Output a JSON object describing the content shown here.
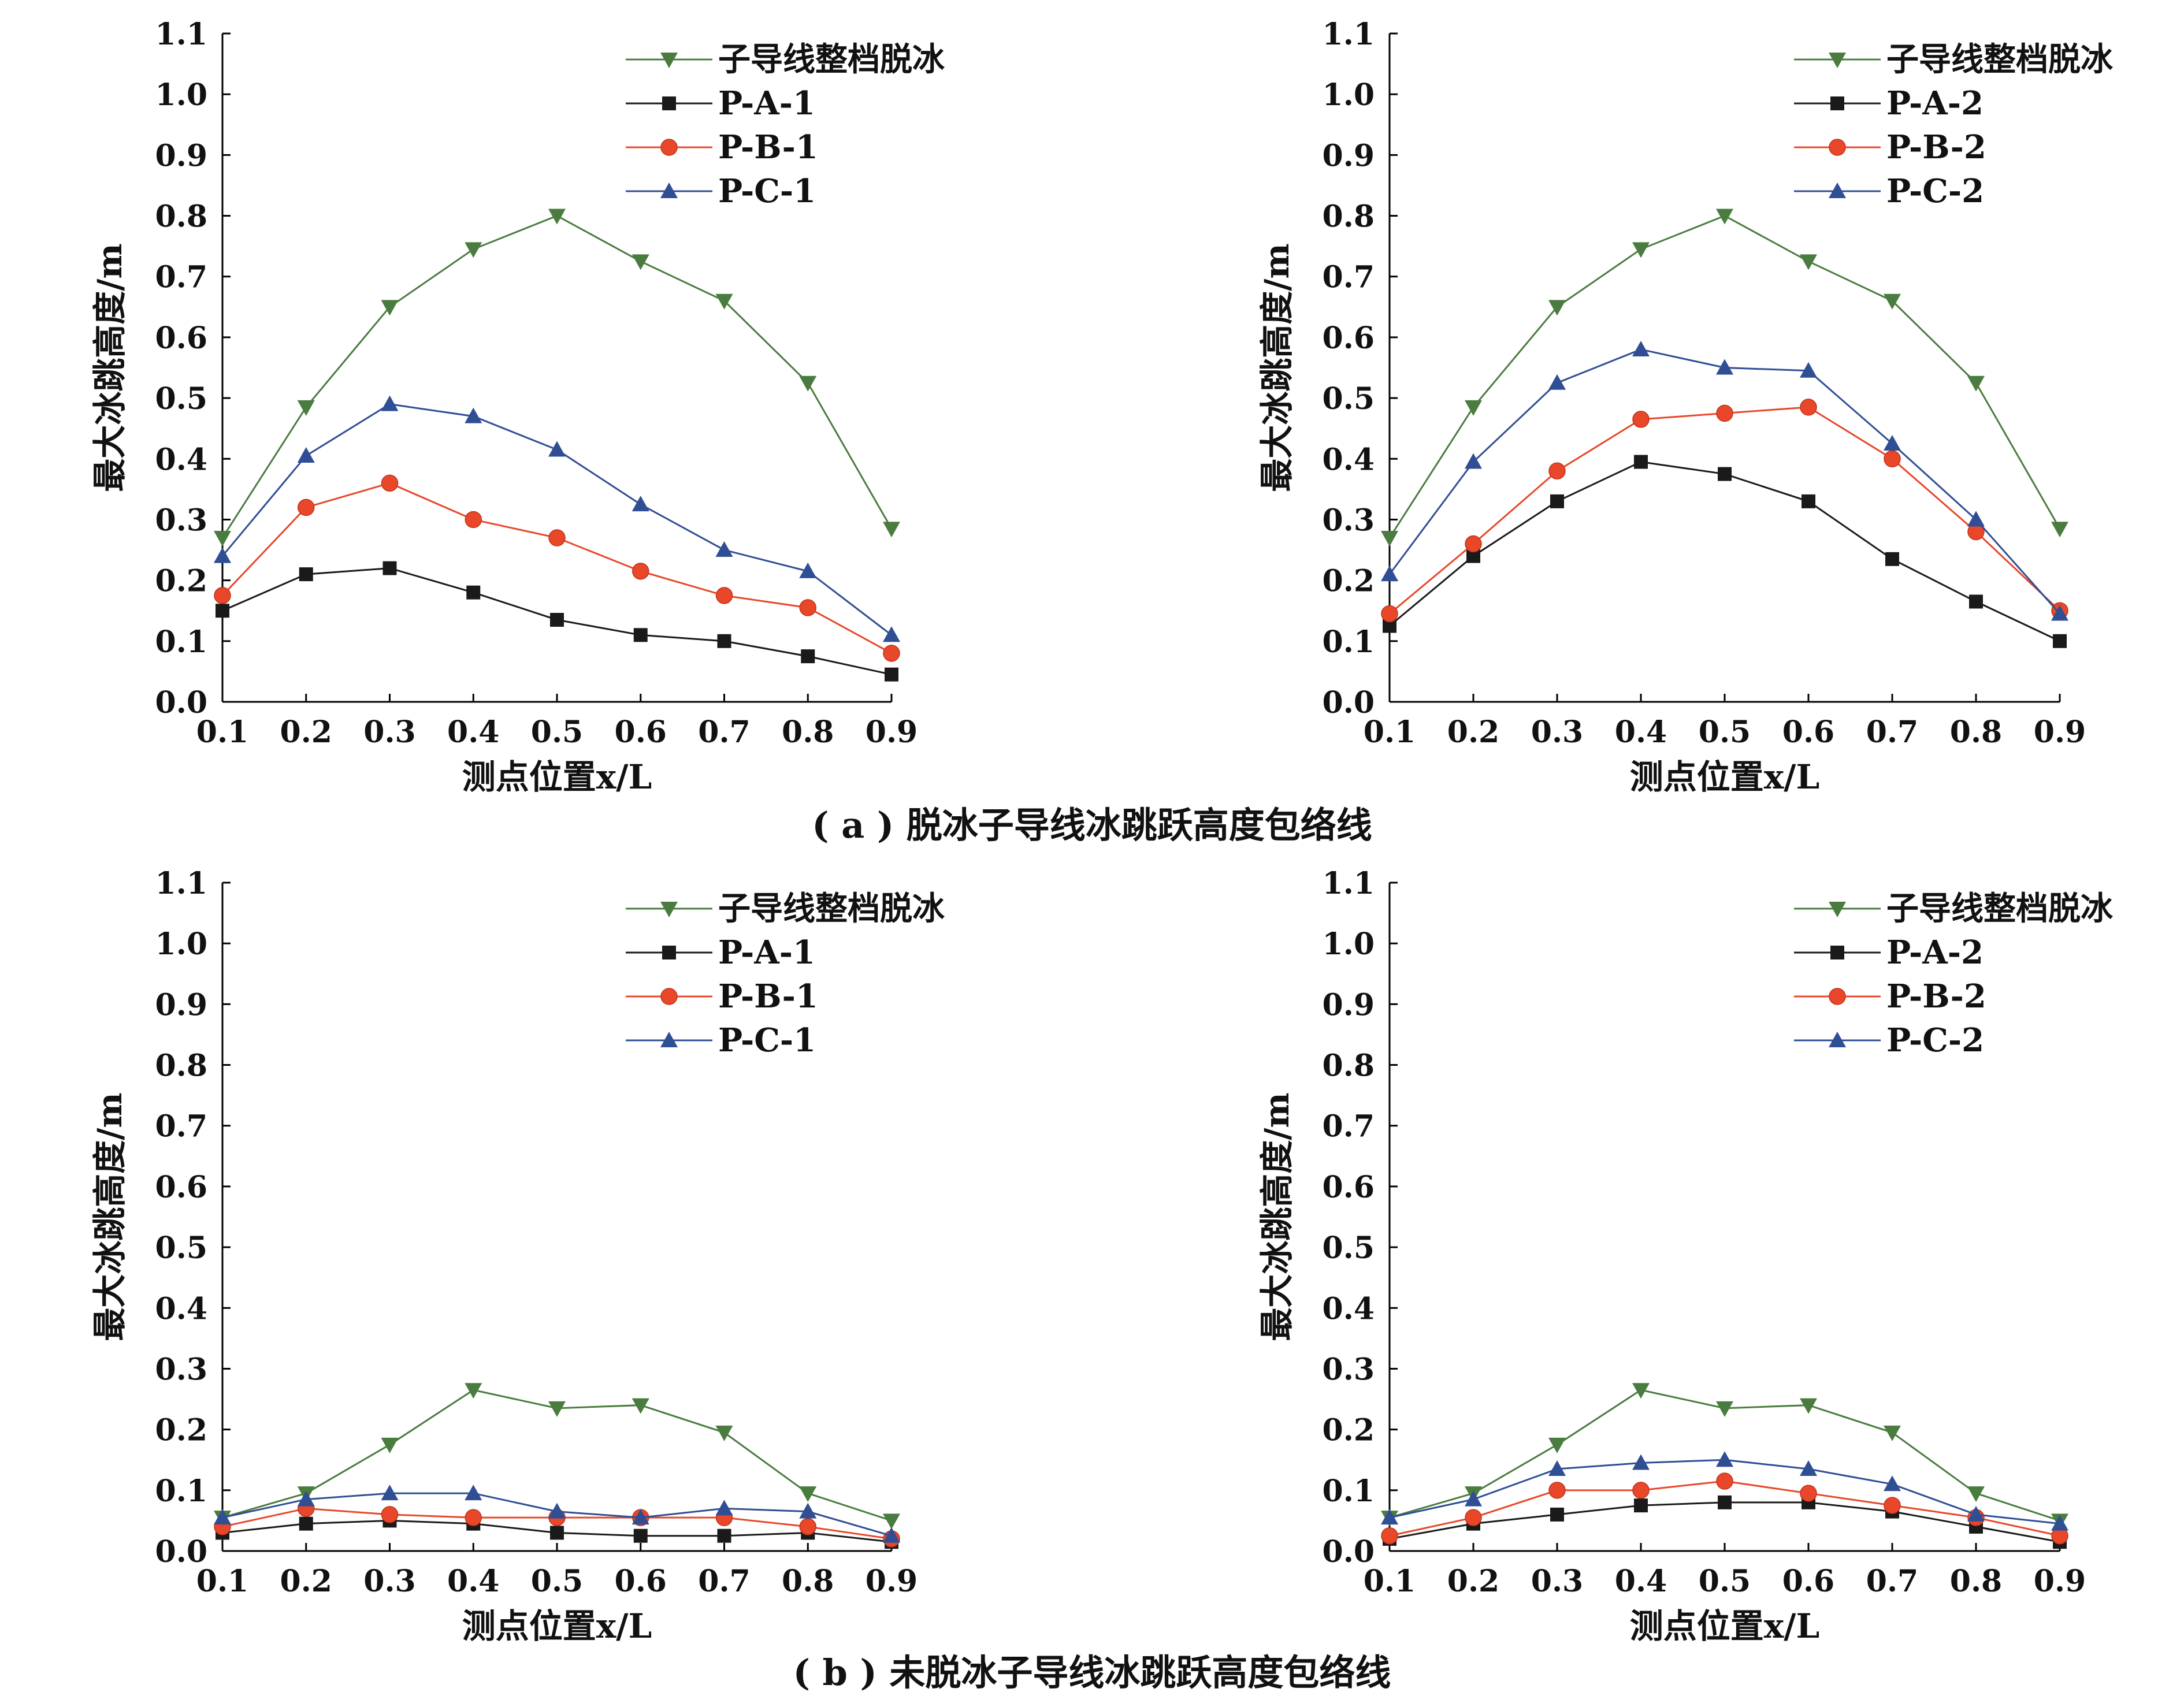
{
  "chart_data": [
    {
      "id": "a-left",
      "type": "line",
      "x": [
        0.1,
        0.2,
        0.3,
        0.4,
        0.5,
        0.6,
        0.7,
        0.8,
        0.9
      ],
      "xlabel": "测点位置x/L",
      "ylabel": "最大冰跳高度/m",
      "xlim": [
        0.1,
        0.9
      ],
      "ylim": [
        0.0,
        1.1
      ],
      "xticks": [
        "0.1",
        "0.2",
        "0.3",
        "0.4",
        "0.5",
        "0.6",
        "0.7",
        "0.8",
        "0.9"
      ],
      "yticks": [
        "0.0",
        "0.1",
        "0.2",
        "0.3",
        "0.4",
        "0.5",
        "0.6",
        "0.7",
        "0.8",
        "0.9",
        "1.0",
        "1.1"
      ],
      "legend": "top-right",
      "series": [
        {
          "name": "子导线整档脱冰",
          "marker": "triangle-down",
          "color": "#4a7c3f",
          "values": [
            0.27,
            0.485,
            0.65,
            0.745,
            0.8,
            0.725,
            0.66,
            0.525,
            0.285
          ]
        },
        {
          "name": "P-A-1",
          "marker": "square",
          "color": "#1a1a1a",
          "values": [
            0.15,
            0.21,
            0.22,
            0.18,
            0.135,
            0.11,
            0.1,
            0.075,
            0.045
          ]
        },
        {
          "name": "P-B-1",
          "marker": "circle",
          "color": "#e8472a",
          "values": [
            0.175,
            0.32,
            0.36,
            0.3,
            0.27,
            0.215,
            0.175,
            0.155,
            0.08
          ]
        },
        {
          "name": "P-C-1",
          "marker": "triangle-up",
          "color": "#2f4e94",
          "values": [
            0.24,
            0.405,
            0.49,
            0.47,
            0.415,
            0.325,
            0.25,
            0.215,
            0.11
          ]
        }
      ]
    },
    {
      "id": "a-right",
      "type": "line",
      "x": [
        0.1,
        0.2,
        0.3,
        0.4,
        0.5,
        0.6,
        0.7,
        0.8,
        0.9
      ],
      "xlabel": "测点位置x/L",
      "ylabel": "最大冰跳高度/m",
      "xlim": [
        0.1,
        0.9
      ],
      "ylim": [
        0.0,
        1.1
      ],
      "xticks": [
        "0.1",
        "0.2",
        "0.3",
        "0.4",
        "0.5",
        "0.6",
        "0.7",
        "0.8",
        "0.9"
      ],
      "yticks": [
        "0.0",
        "0.1",
        "0.2",
        "0.3",
        "0.4",
        "0.5",
        "0.6",
        "0.7",
        "0.8",
        "0.9",
        "1.0",
        "1.1"
      ],
      "legend": "top-right",
      "series": [
        {
          "name": "子导线整档脱冰",
          "marker": "triangle-down",
          "color": "#4a7c3f",
          "values": [
            0.27,
            0.485,
            0.65,
            0.745,
            0.8,
            0.725,
            0.66,
            0.525,
            0.285
          ]
        },
        {
          "name": "P-A-2",
          "marker": "square",
          "color": "#1a1a1a",
          "values": [
            0.125,
            0.24,
            0.33,
            0.395,
            0.375,
            0.33,
            0.235,
            0.165,
            0.1
          ]
        },
        {
          "name": "P-B-2",
          "marker": "circle",
          "color": "#e8472a",
          "values": [
            0.145,
            0.26,
            0.38,
            0.465,
            0.475,
            0.485,
            0.4,
            0.28,
            0.15
          ]
        },
        {
          "name": "P-C-2",
          "marker": "triangle-up",
          "color": "#2f4e94",
          "values": [
            0.21,
            0.395,
            0.525,
            0.58,
            0.55,
            0.545,
            0.425,
            0.3,
            0.145
          ]
        }
      ]
    },
    {
      "id": "b-left",
      "type": "line",
      "x": [
        0.1,
        0.2,
        0.3,
        0.4,
        0.5,
        0.6,
        0.7,
        0.8,
        0.9
      ],
      "xlabel": "测点位置x/L",
      "ylabel": "最大冰跳高度/m",
      "xlim": [
        0.1,
        0.9
      ],
      "ylim": [
        0.0,
        1.1
      ],
      "xticks": [
        "0.1",
        "0.2",
        "0.3",
        "0.4",
        "0.5",
        "0.6",
        "0.7",
        "0.8",
        "0.9"
      ],
      "yticks": [
        "0.0",
        "0.1",
        "0.2",
        "0.3",
        "0.4",
        "0.5",
        "0.6",
        "0.7",
        "0.8",
        "0.9",
        "1.0",
        "1.1"
      ],
      "legend": "top-right",
      "series": [
        {
          "name": "子导线整档脱冰",
          "marker": "triangle-down",
          "color": "#4a7c3f",
          "values": [
            0.055,
            0.095,
            0.175,
            0.265,
            0.235,
            0.24,
            0.195,
            0.095,
            0.05
          ]
        },
        {
          "name": "P-A-1",
          "marker": "square",
          "color": "#1a1a1a",
          "values": [
            0.03,
            0.045,
            0.05,
            0.045,
            0.03,
            0.025,
            0.025,
            0.03,
            0.015
          ]
        },
        {
          "name": "P-B-1",
          "marker": "circle",
          "color": "#e8472a",
          "values": [
            0.04,
            0.07,
            0.06,
            0.055,
            0.055,
            0.055,
            0.055,
            0.04,
            0.02
          ]
        },
        {
          "name": "P-C-1",
          "marker": "triangle-up",
          "color": "#2f4e94",
          "values": [
            0.055,
            0.085,
            0.095,
            0.095,
            0.065,
            0.055,
            0.07,
            0.065,
            0.025
          ]
        }
      ]
    },
    {
      "id": "b-right",
      "type": "line",
      "x": [
        0.1,
        0.2,
        0.3,
        0.4,
        0.5,
        0.6,
        0.7,
        0.8,
        0.9
      ],
      "xlabel": "测点位置x/L",
      "ylabel": "最大冰跳高度/m",
      "xlim": [
        0.1,
        0.9
      ],
      "ylim": [
        0.0,
        1.1
      ],
      "xticks": [
        "0.1",
        "0.2",
        "0.3",
        "0.4",
        "0.5",
        "0.6",
        "0.7",
        "0.8",
        "0.9"
      ],
      "yticks": [
        "0.0",
        "0.1",
        "0.2",
        "0.3",
        "0.4",
        "0.5",
        "0.6",
        "0.7",
        "0.8",
        "0.9",
        "1.0",
        "1.1"
      ],
      "legend": "top-right",
      "series": [
        {
          "name": "子导线整档脱冰",
          "marker": "triangle-down",
          "color": "#4a7c3f",
          "values": [
            0.055,
            0.095,
            0.175,
            0.265,
            0.235,
            0.24,
            0.195,
            0.095,
            0.05
          ]
        },
        {
          "name": "P-A-2",
          "marker": "square",
          "color": "#1a1a1a",
          "values": [
            0.02,
            0.045,
            0.06,
            0.075,
            0.08,
            0.08,
            0.065,
            0.04,
            0.015
          ]
        },
        {
          "name": "P-B-2",
          "marker": "circle",
          "color": "#e8472a",
          "values": [
            0.025,
            0.055,
            0.1,
            0.1,
            0.115,
            0.095,
            0.075,
            0.055,
            0.025
          ]
        },
        {
          "name": "P-C-2",
          "marker": "triangle-up",
          "color": "#2f4e94",
          "values": [
            0.055,
            0.085,
            0.135,
            0.145,
            0.15,
            0.135,
            0.11,
            0.06,
            0.045
          ]
        }
      ]
    }
  ],
  "captions": {
    "a": "( a ) 脱冰子导线冰跳跃高度包络线",
    "b": "( b ) 未脱冰子导线冰跳跃高度包络线"
  }
}
